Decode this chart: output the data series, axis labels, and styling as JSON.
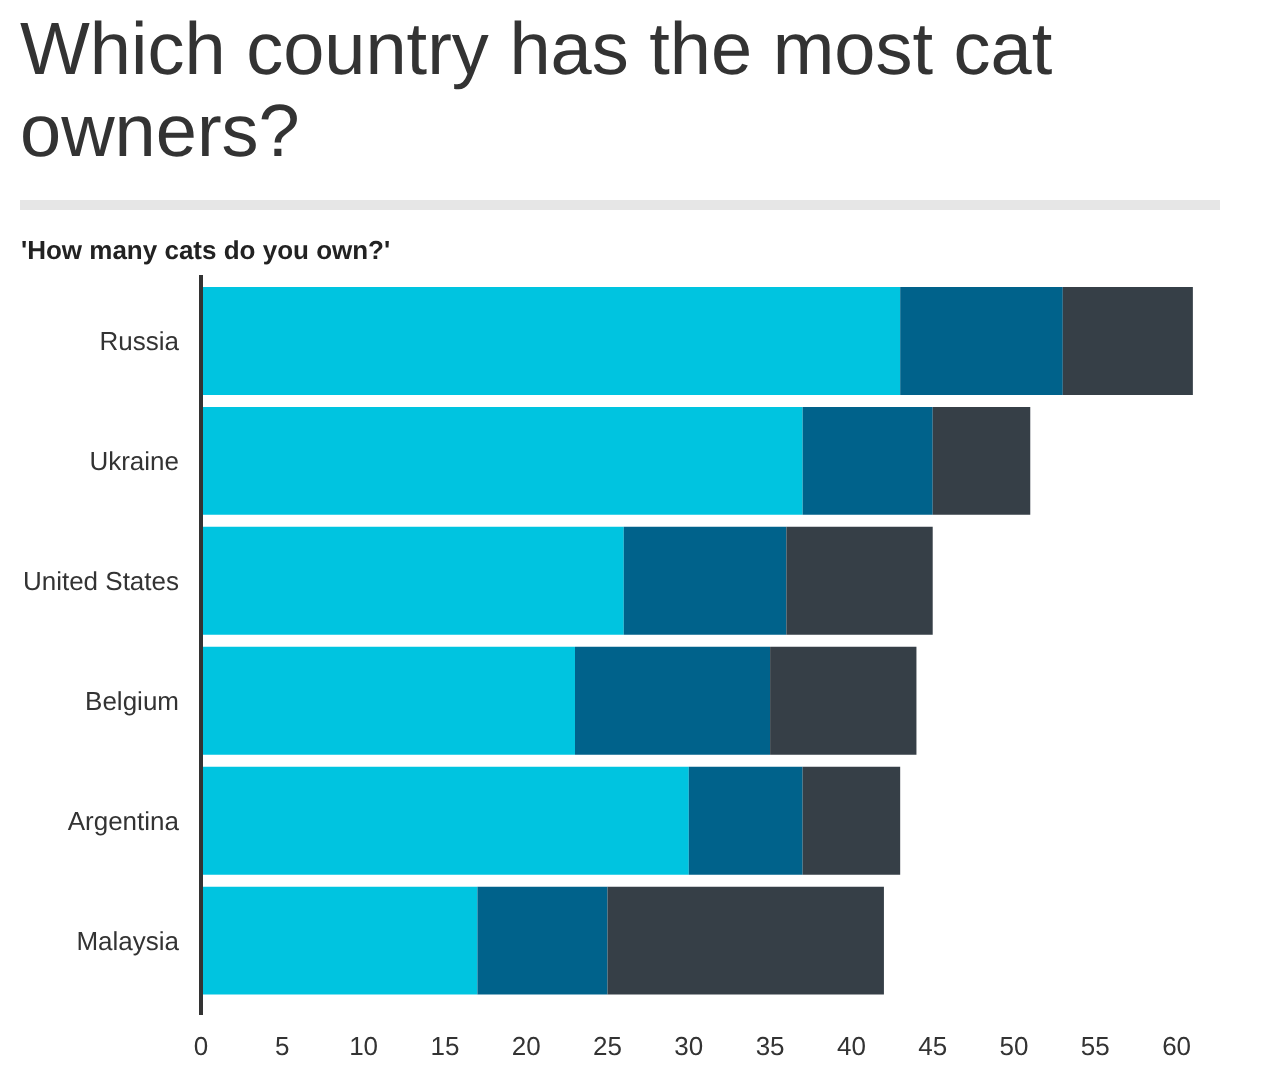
{
  "chart_data": {
    "type": "bar",
    "orientation": "horizontal",
    "stacked": true,
    "title": "Which country has the most cat owners?",
    "subtitle": "'How many cats do you own?'",
    "categories": [
      "Russia",
      "Ukraine",
      "United States",
      "Belgium",
      "Argentina",
      "Malaysia"
    ],
    "series": [
      {
        "color": "#00c4e0",
        "values": [
          43,
          37,
          26,
          23,
          30,
          17
        ]
      },
      {
        "color": "#00628b",
        "values": [
          10,
          8,
          10,
          12,
          7,
          8
        ]
      },
      {
        "color": "#363f47",
        "values": [
          8,
          6,
          9,
          9,
          6,
          17
        ]
      }
    ],
    "xlim": [
      0,
      61.5
    ],
    "xticks": [
      0,
      5,
      10,
      15,
      20,
      25,
      30,
      35,
      40,
      45,
      50,
      55,
      60
    ],
    "grid": false
  }
}
